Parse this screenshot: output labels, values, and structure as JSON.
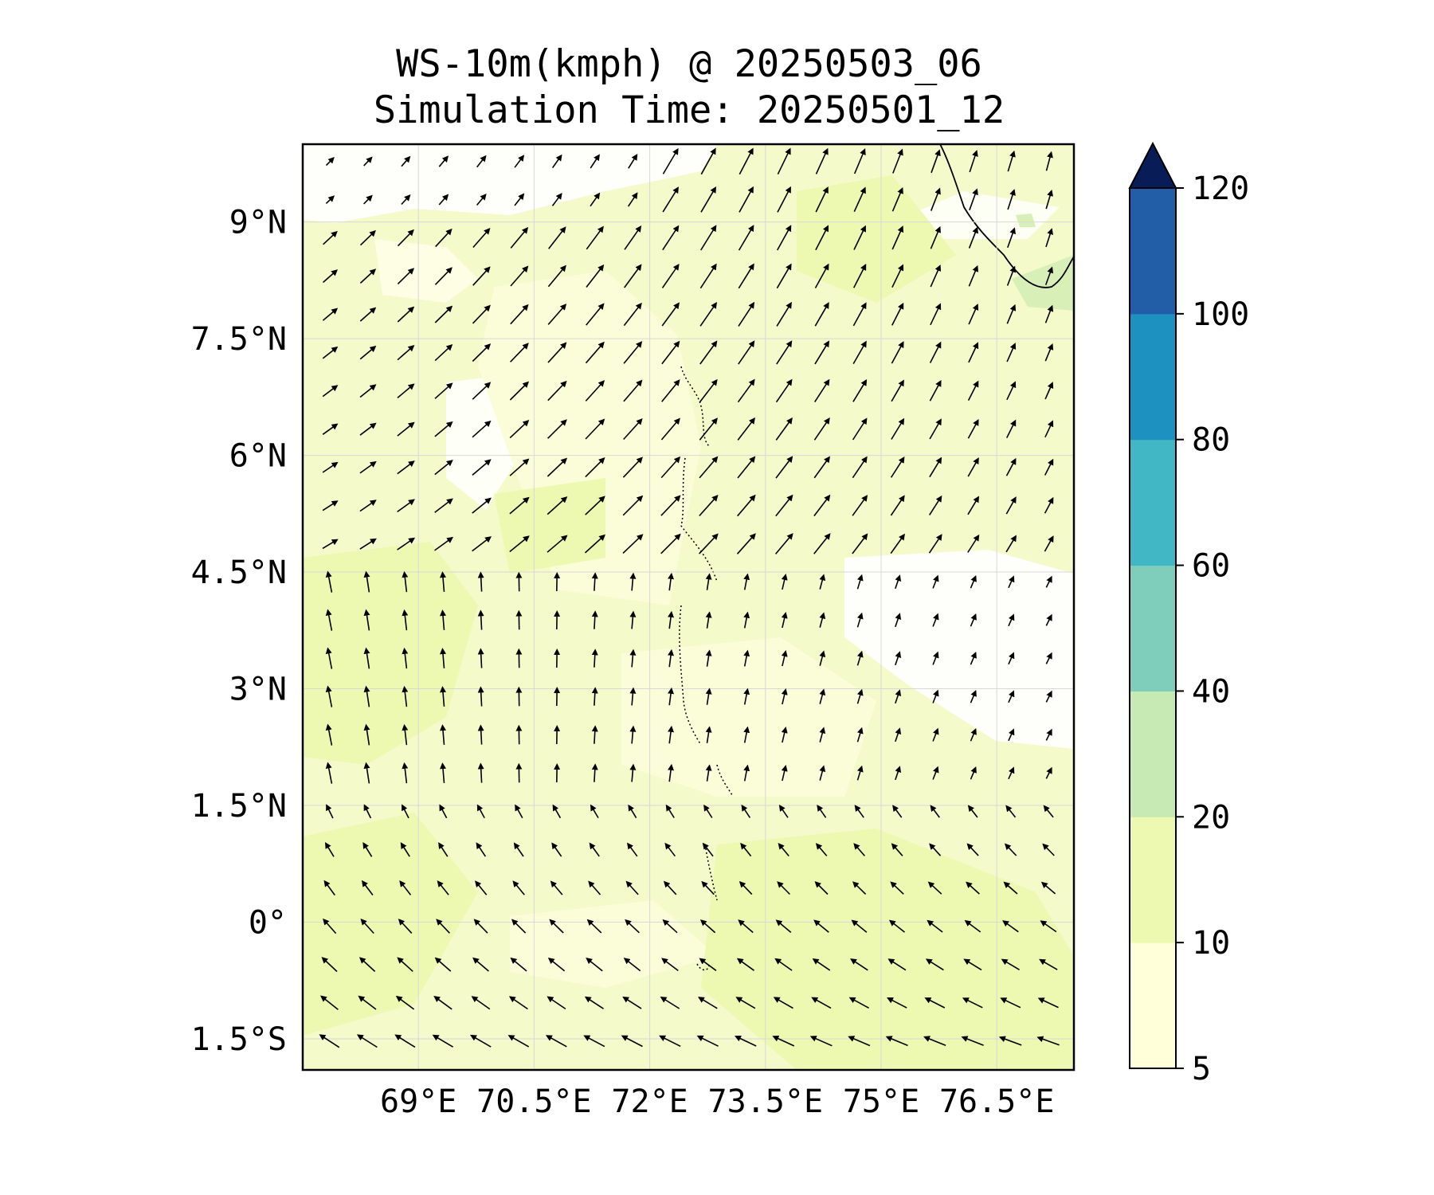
{
  "title": {
    "line1": "WS-10m(kmph) @ 20250503_06",
    "line2": "Simulation Time: 20250501_12"
  },
  "map": {
    "lon_range": [
      67.5,
      77.5
    ],
    "lat_range": [
      -1.9,
      10
    ],
    "gridlines": true,
    "lon_ticks": [
      {
        "value": 69,
        "label": "69°E"
      },
      {
        "value": 70.5,
        "label": "70.5°E"
      },
      {
        "value": 72,
        "label": "72°E"
      },
      {
        "value": 73.5,
        "label": "73.5°E"
      },
      {
        "value": 75,
        "label": "75°E"
      },
      {
        "value": 76.5,
        "label": "76.5°E"
      }
    ],
    "lat_ticks": [
      {
        "value": 9,
        "label": "9°N"
      },
      {
        "value": 7.5,
        "label": "7.5°N"
      },
      {
        "value": 6,
        "label": "6°N"
      },
      {
        "value": 4.5,
        "label": "4.5°N"
      },
      {
        "value": 3,
        "label": "3°N"
      },
      {
        "value": 1.5,
        "label": "1.5°N"
      },
      {
        "value": 0,
        "label": "0°"
      },
      {
        "value": -1.5,
        "label": "1.5°S"
      }
    ],
    "background_color": "#f4fac9"
  },
  "colorbar": {
    "levels": [
      5,
      10,
      20,
      40,
      60,
      80,
      100,
      120
    ],
    "tick_labels": [
      "5",
      "10",
      "20",
      "40",
      "60",
      "80",
      "100",
      "120"
    ],
    "colors": [
      "#ffffd9",
      "#edf8b1",
      "#c7e9b4",
      "#7fcdbb",
      "#41b6c4",
      "#1d91c0",
      "#225ea8",
      "#253494"
    ],
    "extend_color": "#081d58",
    "extend": "max"
  }
}
